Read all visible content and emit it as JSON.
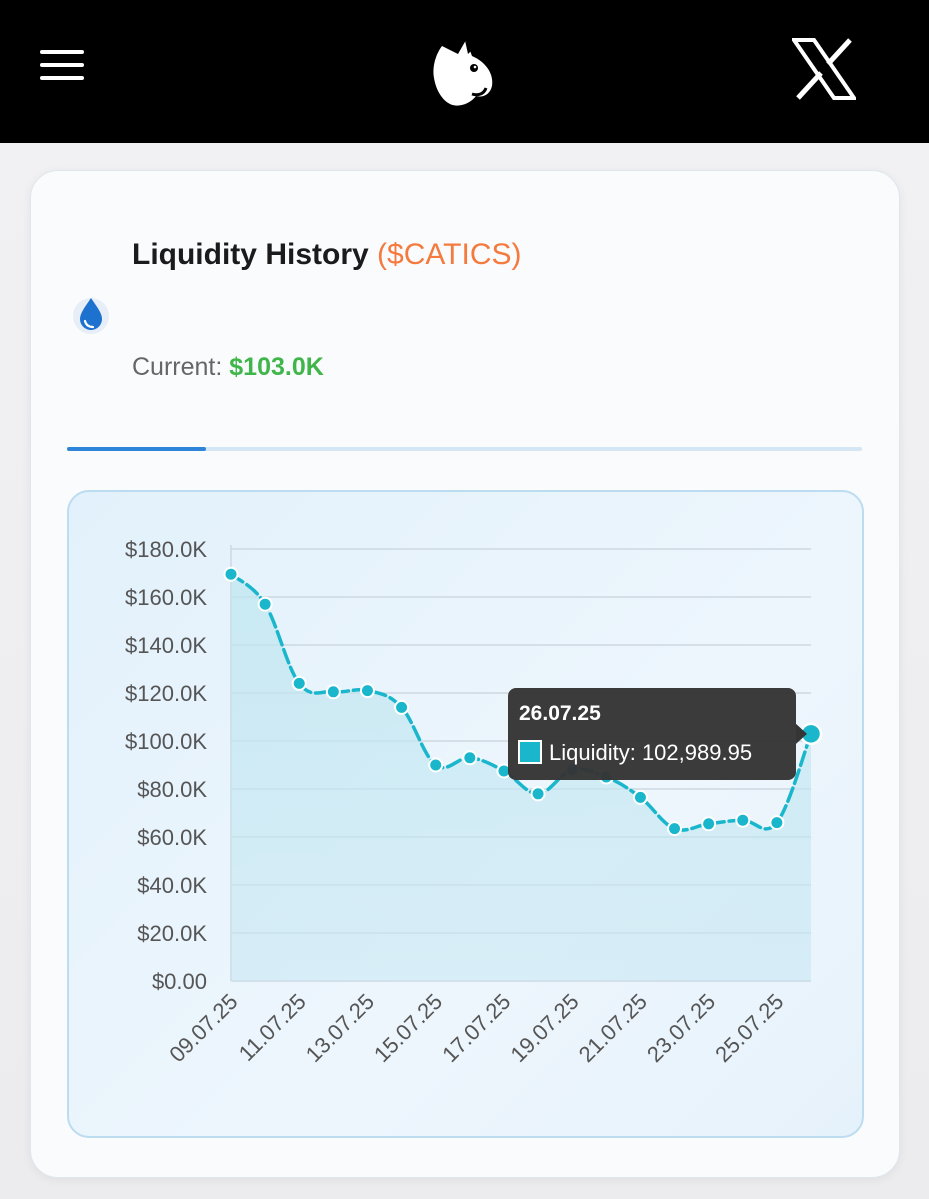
{
  "header": {
    "menu_icon": "hamburger-menu-icon",
    "logo_icon": "cat-head-logo",
    "social_icon": "x-logo-icon"
  },
  "card": {
    "title": "Liquidity History",
    "ticker": "($CATICS)",
    "icon": "water-drop-icon",
    "current_label": "Current:",
    "current_value": "$103.0K",
    "progress_fraction": 0.175
  },
  "colors": {
    "line": "#1ab7cc",
    "ticker": "#f47a3e",
    "current_value": "#3fb54a",
    "progress": "#2d84d8"
  },
  "chart_data": {
    "type": "area",
    "y_ticks": [
      "$0.00",
      "$20.0K",
      "$40.0K",
      "$60.0K",
      "$80.0K",
      "$100.0K",
      "$120.0K",
      "$140.0K",
      "$160.0K",
      "$180.0K"
    ],
    "ylim": [
      0,
      180000
    ],
    "x_ticks": [
      "09.07.25",
      "11.07.25",
      "13.07.25",
      "15.07.25",
      "17.07.25",
      "19.07.25",
      "21.07.25",
      "23.07.25",
      "25.07.25"
    ],
    "x": [
      "09.07.25",
      "10.07.25",
      "11.07.25",
      "12.07.25",
      "13.07.25",
      "14.07.25",
      "15.07.25",
      "16.07.25",
      "17.07.25",
      "18.07.25",
      "19.07.25",
      "20.07.25",
      "21.07.25",
      "22.07.25",
      "23.07.25",
      "24.07.25",
      "25.07.25",
      "26.07.25"
    ],
    "series": [
      {
        "name": "Liquidity",
        "values": [
          169500,
          157000,
          124000,
          120500,
          121000,
          114000,
          90000,
          93000,
          87500,
          78000,
          88000,
          85000,
          76500,
          63500,
          65500,
          67000,
          66000,
          102989.95
        ]
      }
    ],
    "grid": true,
    "tooltip": {
      "date": "26.07.25",
      "label": "Liquidity: 102,989.95"
    }
  }
}
